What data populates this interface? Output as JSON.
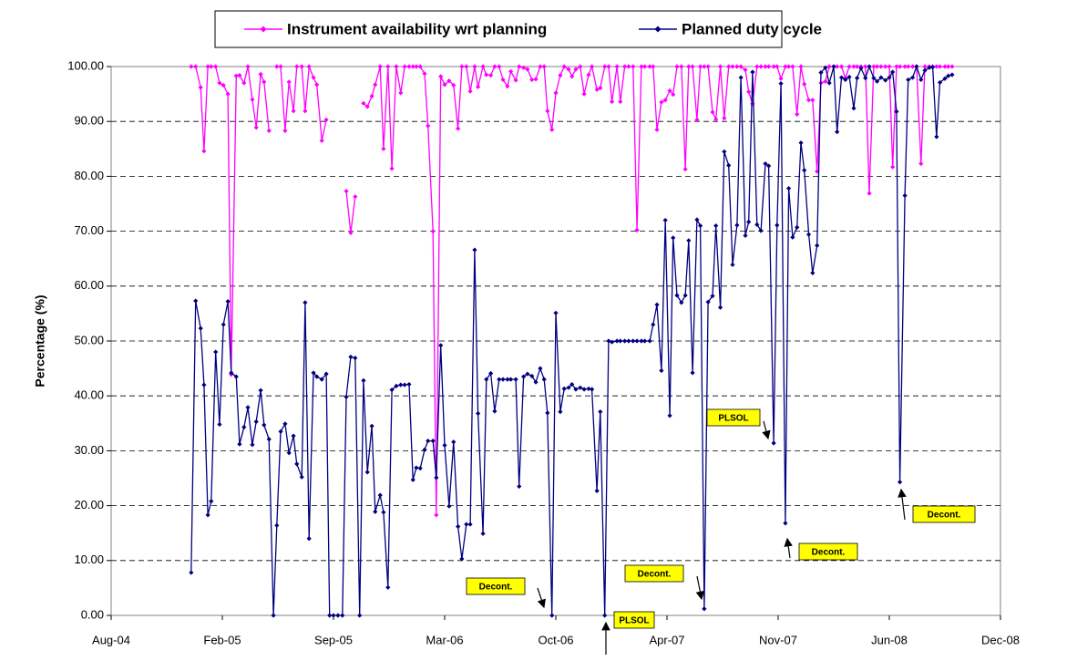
{
  "chart_data": {
    "type": "line",
    "y_label": "Percentage (%)",
    "xlim": [
      0,
      1600
    ],
    "xticks": [
      {
        "value": 0,
        "label": "Aug-04"
      },
      {
        "value": 200,
        "label": "Feb-05"
      },
      {
        "value": 400,
        "label": "Sep-05"
      },
      {
        "value": 600,
        "label": "Mar-06"
      },
      {
        "value": 800,
        "label": "Oct-06"
      },
      {
        "value": 1000,
        "label": "Apr-07"
      },
      {
        "value": 1200,
        "label": "Nov-07"
      },
      {
        "value": 1400,
        "label": "Jun-08"
      },
      {
        "value": 1600,
        "label": "Dec-08"
      }
    ],
    "ylim": [
      0,
      100
    ],
    "yticks": [
      {
        "value": 0,
        "label": "0.00"
      },
      {
        "value": 10,
        "label": "10.00"
      },
      {
        "value": 20,
        "label": "20.00"
      },
      {
        "value": 30,
        "label": "30.00"
      },
      {
        "value": 40,
        "label": "40.00"
      },
      {
        "value": 50,
        "label": "50.00"
      },
      {
        "value": 60,
        "label": "60.00"
      },
      {
        "value": 70,
        "label": "70.00"
      },
      {
        "value": 80,
        "label": "80.00"
      },
      {
        "value": 90,
        "label": "90.00"
      },
      {
        "value": 100,
        "label": "100.00"
      }
    ],
    "grid": true,
    "legend": "top",
    "x": [
      144,
      152,
      161,
      167,
      174,
      180,
      188,
      195,
      202,
      210,
      216,
      225,
      231,
      239,
      246,
      254,
      261,
      269,
      275,
      284,
      292,
      298,
      305,
      313,
      320,
      328,
      334,
      343,
      349,
      356,
      364,
      370,
      379,
      387,
      393,
      400,
      408,
      416,
      423,
      431,
      439,
      447,
      454,
      461,
      469,
      475,
      484,
      490,
      498,
      505,
      513,
      521,
      528,
      536,
      543,
      549,
      556,
      564,
      570,
      579,
      585,
      593,
      600,
      608,
      616,
      624,
      631,
      639,
      646,
      654,
      660,
      669,
      675,
      683,
      690,
      698,
      705,
      713,
      719,
      728,
      734,
      742,
      749,
      757,
      764,
      772,
      779,
      785,
      793,
      800,
      808,
      815,
      823,
      829,
      836,
      844,
      851,
      859,
      865,
      874,
      880,
      888,
      895,
      901,
      910,
      916,
      924,
      931,
      939,
      946,
      954,
      960,
      969,
      975,
      982,
      990,
      997,
      1005,
      1011,
      1018,
      1026,
      1033,
      1039,
      1046,
      1054,
      1060,
      1067,
      1074,
      1082,
      1088,
      1096,
      1103,
      1111,
      1118,
      1126,
      1133,
      1141,
      1147,
      1154,
      1162,
      1169,
      1177,
      1183,
      1192,
      1198,
      1205,
      1213,
      1219,
      1226,
      1234,
      1241,
      1247,
      1255,
      1262,
      1270,
      1277,
      1285,
      1292,
      1300,
      1306,
      1314,
      1321,
      1328,
      1336,
      1342,
      1349,
      1357,
      1364,
      1372,
      1378,
      1385,
      1393,
      1400,
      1406,
      1413,
      1419,
      1428,
      1434,
      1442,
      1449,
      1457,
      1464,
      1472,
      1478,
      1485,
      1491,
      1500,
      1506,
      1513
    ],
    "series": [
      {
        "name": "Instrument availability wrt planning",
        "color": "#ff00ff",
        "values": [
          100,
          100,
          96.2,
          84.6,
          100,
          100,
          100,
          97,
          96.6,
          95,
          43.9,
          98.3,
          98.4,
          97,
          100,
          94,
          88.9,
          98.6,
          97.2,
          88.3,
          null,
          100,
          100,
          88.3,
          97.2,
          91.9,
          100,
          100,
          91.9,
          100,
          98,
          96.7,
          86.5,
          90.3,
          null,
          null,
          null,
          null,
          77.3,
          69.7,
          76.3,
          null,
          93.3,
          92.7,
          94.6,
          96.7,
          100,
          85,
          100,
          81.4,
          100,
          95.2,
          100,
          100,
          100,
          100,
          100,
          98.7,
          89.2,
          70,
          18.3,
          98.2,
          96.7,
          97.4,
          96.6,
          88.7,
          100,
          100,
          95.5,
          100,
          96.3,
          100,
          98.5,
          98.4,
          100,
          100,
          97.6,
          96.4,
          99.1,
          97.5,
          100,
          99.8,
          99.5,
          97.6,
          97.7,
          100,
          100,
          91.9,
          88.5,
          95.2,
          98.4,
          100,
          99.5,
          98.2,
          99.5,
          100,
          95,
          98.5,
          100,
          95.8,
          96.1,
          100,
          100,
          93.6,
          100,
          93.6,
          100,
          100,
          100,
          70.2,
          100,
          100,
          100,
          100,
          88.5,
          93.5,
          93.9,
          95.6,
          94.9,
          100,
          100,
          81.3,
          100,
          100,
          90.3,
          100,
          100,
          100,
          91.7,
          90.4,
          100,
          90.6,
          100,
          100,
          100,
          100,
          99.4,
          95.4,
          93.2,
          100,
          100,
          100,
          100,
          100,
          100,
          97.8,
          100,
          100,
          100,
          91.3,
          100,
          96.8,
          93.9,
          93.9,
          80.9,
          97,
          97.3,
          100,
          100,
          100,
          100,
          97.9,
          100,
          100,
          100,
          100,
          100,
          76.9,
          100,
          100,
          100,
          100,
          100,
          81.7,
          100,
          100,
          100,
          100,
          100,
          100,
          82.3,
          100,
          100,
          100,
          100,
          100,
          100,
          100,
          100
        ]
      },
      {
        "name": "Planned duty cycle",
        "color": "#000080",
        "values": [
          7.8,
          57.3,
          52.3,
          42,
          18.3,
          20.8,
          48,
          34.8,
          53,
          57.2,
          44.2,
          43.5,
          31.2,
          34.3,
          37.9,
          31.1,
          35.3,
          41,
          34.7,
          32.1,
          0,
          16.4,
          33.5,
          34.9,
          29.6,
          32.7,
          27.6,
          25.2,
          57,
          14,
          44.2,
          43.5,
          43,
          44,
          0,
          0,
          0,
          0,
          39.8,
          47.1,
          46.9,
          0,
          42.8,
          26.1,
          34.5,
          18.9,
          21.9,
          18.8,
          5.1,
          41.1,
          41.8,
          42,
          42,
          42.1,
          24.7,
          26.9,
          26.8,
          30.2,
          31.8,
          31.8,
          25.1,
          49.2,
          31,
          19.9,
          31.6,
          16.2,
          10.3,
          16.6,
          16.6,
          66.6,
          36.8,
          14.9,
          43,
          44.1,
          37.2,
          43,
          43,
          43,
          43,
          43,
          23.5,
          43.5,
          44,
          43.6,
          42.5,
          45,
          43,
          36.9,
          0,
          55.1,
          37.1,
          41.3,
          41.5,
          42.1,
          41.2,
          41.5,
          41.2,
          41.3,
          41.2,
          22.7,
          37.1,
          0,
          50,
          49.8,
          50,
          50,
          50,
          50,
          50,
          50,
          50,
          50,
          50,
          53,
          56.6,
          44.6,
          72,
          36.4,
          68.8,
          58.3,
          57,
          58.3,
          68.3,
          44.2,
          72.1,
          71,
          1.2,
          57.1,
          58.2,
          71,
          56.1,
          84.5,
          82,
          63.9,
          71.1,
          98,
          69.2,
          71.7,
          99,
          71.2,
          70.1,
          82.3,
          81.9,
          31.4,
          71.1,
          96.9,
          16.8,
          77.8,
          68.9,
          70.7,
          86.1,
          81.1,
          69.4,
          62.4,
          67.4,
          98.9,
          99.8,
          97,
          100,
          88.1,
          98,
          97.6,
          98.1,
          92.4,
          97.9,
          99.7,
          97.9,
          100,
          97.9,
          97.3,
          98,
          97.5,
          98,
          99,
          91.8,
          24.3,
          76.5,
          97.6,
          98,
          100,
          97.6,
          99.3,
          99.8,
          99.9,
          87.2,
          97.1,
          97.8,
          98.3,
          98.5
        ]
      }
    ],
    "annotations": [
      "Decont.",
      "PLSOL",
      "Decont.",
      "PLSOL",
      "Decont.",
      "Decont."
    ]
  }
}
